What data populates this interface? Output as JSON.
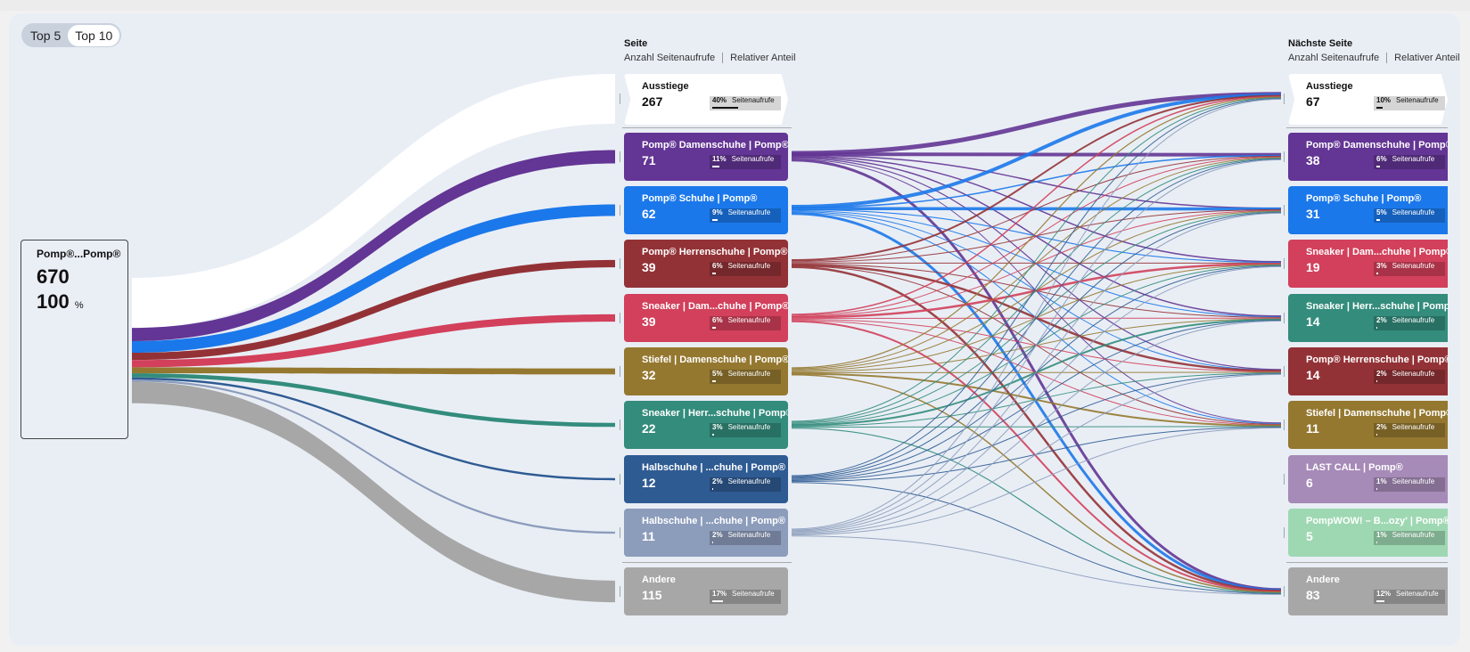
{
  "toggle": {
    "options": [
      "Top 5",
      "Top 10"
    ],
    "active": "Top 10"
  },
  "source": {
    "label": "Pomp®...Pomp®",
    "count": "670",
    "percent": "100",
    "percent_unit": "%"
  },
  "columns": {
    "middle": {
      "title": "Seite",
      "metric1": "Anzahl Seitenaufrufe",
      "metric2": "Relativer Anteil"
    },
    "right": {
      "title": "Nächste Seite",
      "metric1": "Anzahl Seitenaufrufe",
      "metric2": "Relativer Anteil"
    }
  },
  "badge_unit": "Seitenaufrufe",
  "middle_nodes": [
    {
      "label": "Ausstiege",
      "value": "267",
      "pct": "40%",
      "color": "#ffffff"
    },
    {
      "label": "Pomp® Damenschuhe | Pomp®",
      "value": "71",
      "pct": "11%",
      "color": "#633594"
    },
    {
      "label": "Pomp® Schuhe | Pomp®",
      "value": "62",
      "pct": "9%",
      "color": "#1b78ea"
    },
    {
      "label": "Pomp® Herrenschuhe | Pomp®",
      "value": "39",
      "pct": "6%",
      "color": "#933236"
    },
    {
      "label": "Sneaker | Dam...chuhe | Pomp®",
      "value": "39",
      "pct": "6%",
      "color": "#d2405b"
    },
    {
      "label": "Stiefel | Damenschuhe | Pomp®",
      "value": "32",
      "pct": "5%",
      "color": "#957830"
    },
    {
      "label": "Sneaker | Herr...schuhe | Pomp®",
      "value": "22",
      "pct": "3%",
      "color": "#338c7c"
    },
    {
      "label": "Halbschuhe | ...chuhe | Pomp®",
      "value": "12",
      "pct": "2%",
      "color": "#2f5b93"
    },
    {
      "label": "Halbschuhe | ...chuhe | Pomp®",
      "value": "11",
      "pct": "2%",
      "color": "#8c9cbb"
    },
    {
      "label": "Andere",
      "value": "115",
      "pct": "17%",
      "color": "#a7a7a7"
    }
  ],
  "right_nodes": [
    {
      "label": "Ausstiege",
      "value": "67",
      "pct": "10%",
      "color": "#ffffff"
    },
    {
      "label": "Pomp® Damenschuhe | Pomp®",
      "value": "38",
      "pct": "6%",
      "color": "#633594"
    },
    {
      "label": "Pomp® Schuhe | Pomp®",
      "value": "31",
      "pct": "5%",
      "color": "#1b78ea"
    },
    {
      "label": "Sneaker | Dam...chuhe | Pomp®",
      "value": "19",
      "pct": "3%",
      "color": "#d2405b"
    },
    {
      "label": "Sneaker | Herr...schuhe | Pomp®",
      "value": "14",
      "pct": "2%",
      "color": "#338c7c"
    },
    {
      "label": "Pomp® Herrenschuhe | Pomp®",
      "value": "14",
      "pct": "2%",
      "color": "#933236"
    },
    {
      "label": "Stiefel | Damenschuhe | Pomp®",
      "value": "11",
      "pct": "2%",
      "color": "#957830"
    },
    {
      "label": "LAST CALL | Pomp®",
      "value": "6",
      "pct": "1%",
      "color": "#a68ab7"
    },
    {
      "label": "PompWOW! – B...ozy' | Pomp®",
      "value": "5",
      "pct": "1%",
      "color": "#9ed8b2"
    },
    {
      "label": "Andere",
      "value": "83",
      "pct": "12%",
      "color": "#a7a7a7"
    }
  ]
}
